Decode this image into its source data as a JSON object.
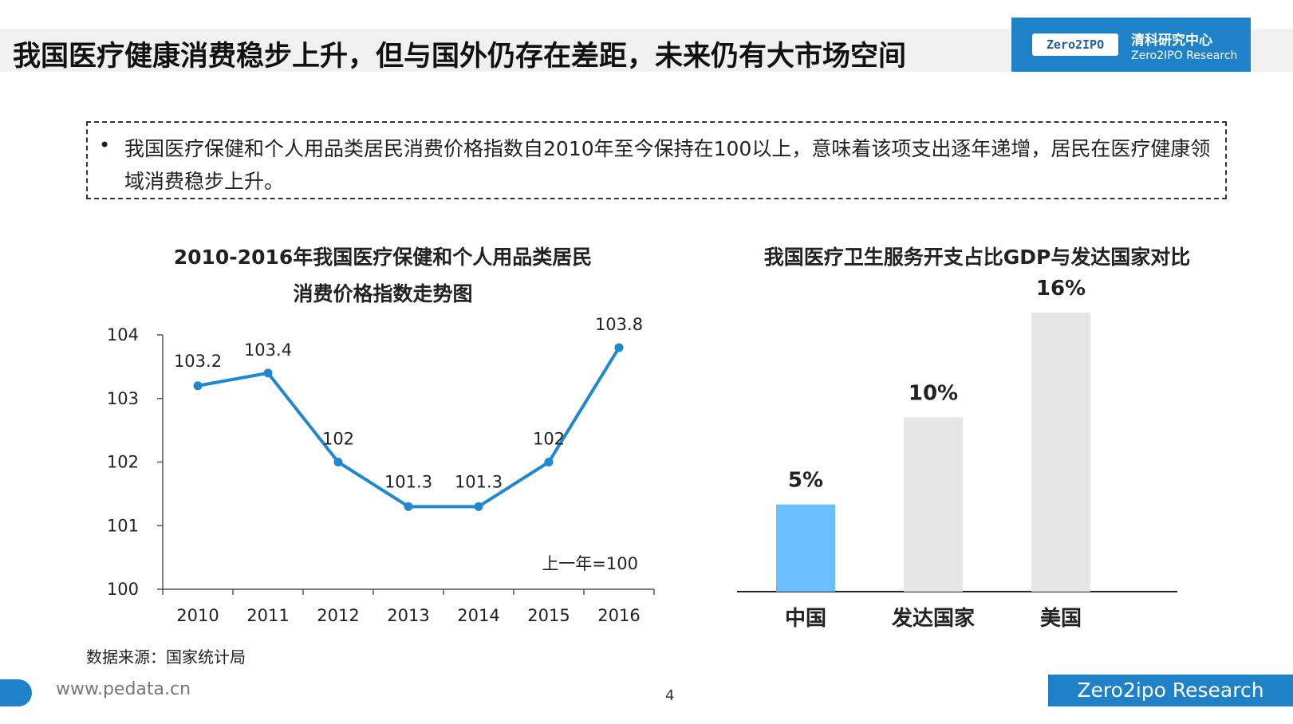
{
  "header": {
    "title": "我国医疗健康消费稳步上升，但与国外仍存在差距，未来仍有大市场空间",
    "logo_mark": "Zero2IPO",
    "logo_cn": "清科研究中心",
    "logo_en": "Zero2IPO Research"
  },
  "summary": {
    "bullet": "•",
    "text": "我国医疗保健和个人用品类居民消费价格指数自2010年至今保持在100以上，意味着该项支出逐年递增，居民在医疗健康领域消费稳步上升。"
  },
  "chart_data": [
    {
      "type": "line",
      "title": "2010-2016年我国医疗保健和个人用品类居民消费价格指数走势图",
      "title_lines": [
        "2010-2016年我国医疗保健和个人用品类居民",
        "消费价格指数走势图"
      ],
      "categories": [
        "2010",
        "2011",
        "2012",
        "2013",
        "2014",
        "2015",
        "2016"
      ],
      "values": [
        103.2,
        103.4,
        102,
        101.3,
        101.3,
        102,
        103.8
      ],
      "value_labels": [
        "103.2",
        "103.4",
        "102",
        "101.3",
        "101.3",
        "102",
        "103.8"
      ],
      "ylim": [
        100,
        104
      ],
      "yticks": [
        100,
        101,
        102,
        103,
        104
      ],
      "annotation": "上一年=100",
      "color": "#1e88d0"
    },
    {
      "type": "bar",
      "title": "我国医疗卫生服务开支占比GDP与发达国家对比",
      "categories": [
        "中国",
        "发达国家",
        "美国"
      ],
      "values": [
        5,
        10,
        16
      ],
      "value_labels": [
        "5%",
        "10%",
        "16%"
      ],
      "unit": "%",
      "colors": [
        "#6bbfff",
        "#e6e6e6",
        "#e6e6e6"
      ]
    }
  ],
  "footer": {
    "source": "数据来源：国家统计局",
    "url": "www.pedata.cn",
    "page": "4",
    "brand": "Zero2ipo Research"
  }
}
